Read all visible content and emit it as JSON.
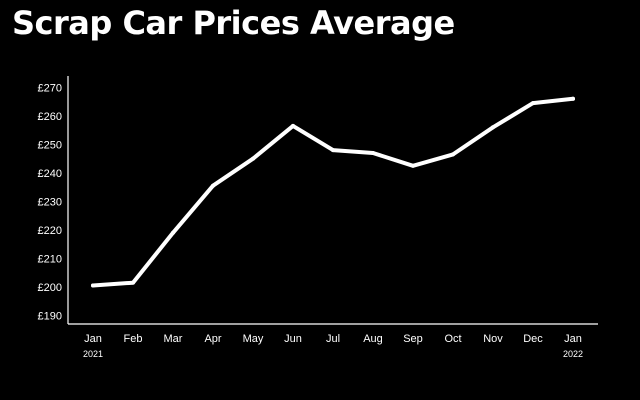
{
  "chart_data": {
    "type": "line",
    "title": "Scrap Car Prices Average",
    "categories": [
      "Jan",
      "Feb",
      "Mar",
      "Apr",
      "May",
      "Jun",
      "Jul",
      "Aug",
      "Sep",
      "Oct",
      "Nov",
      "Dec",
      "Jan"
    ],
    "year_labels": [
      {
        "index": 0,
        "text": "2021"
      },
      {
        "index": 12,
        "text": "2022"
      }
    ],
    "series": [
      {
        "values": [
          200.5,
          201.5,
          219,
          235.5,
          245,
          256.5,
          248,
          247,
          242.5,
          246.5,
          256,
          264.5,
          266
        ]
      }
    ],
    "yticks": [
      "£190",
      "£200",
      "£210",
      "£220",
      "£230",
      "£240",
      "£250",
      "£260",
      "£270"
    ],
    "ytick_values": [
      190,
      200,
      210,
      220,
      230,
      240,
      250,
      260,
      270
    ],
    "ylim": [
      187,
      274
    ],
    "xlabel": "",
    "ylabel": "",
    "grid": false,
    "legend": "none",
    "colors": {
      "background": "#000000",
      "line": "#ffffff",
      "text": "#ffffff"
    }
  }
}
